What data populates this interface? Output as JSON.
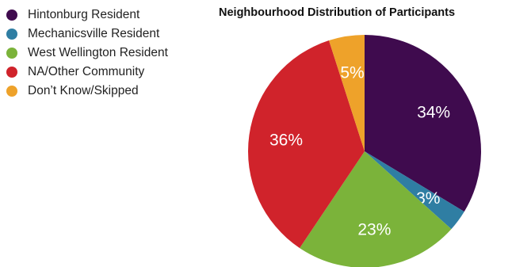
{
  "chart_data": {
    "type": "pie",
    "title": "Neighbourhood Distribution of Participants",
    "legend_position": "top-left",
    "slices": [
      {
        "name": "Hintonburg Resident",
        "value": 34,
        "label": "34%",
        "color": "#3f0b4e"
      },
      {
        "name": "Mechanicsville Resident",
        "value": 3,
        "label": "3%",
        "color": "#2f7ea3"
      },
      {
        "name": "West Wellington Resident",
        "value": 23,
        "label": "23%",
        "color": "#7bb33a"
      },
      {
        "name": "NA/Other Community",
        "value": 36,
        "label": "36%",
        "color": "#d0232b"
      },
      {
        "name": "Don’t Know/Skipped",
        "value": 5,
        "label": "5%",
        "color": "#eea22a"
      }
    ]
  }
}
